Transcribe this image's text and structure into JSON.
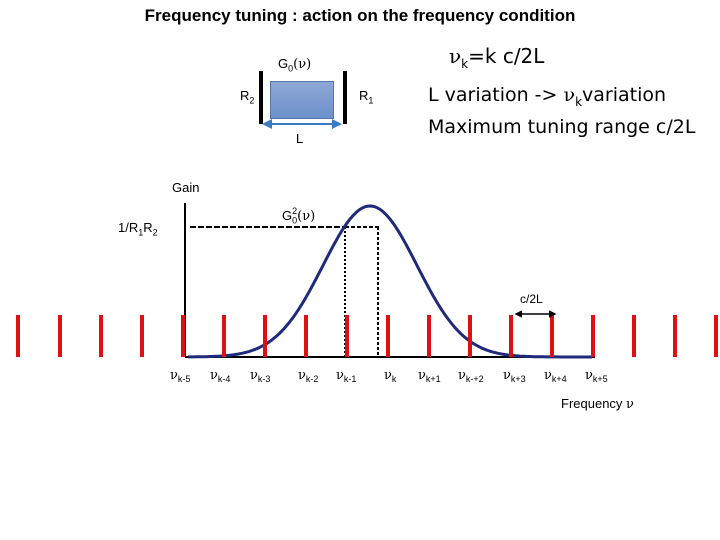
{
  "title": "Frequency tuning : action on the frequency condition",
  "cavity": {
    "gain_symbol": "G",
    "gain_sub": "0",
    "gain_arg": "(ν)",
    "mirror_left": "R",
    "mirror_left_sub": "2",
    "mirror_right": "R",
    "mirror_right_sub": "1",
    "length": "L"
  },
  "condition": {
    "nu": "ν",
    "sub": "k",
    "eq": "=k c/2L"
  },
  "text": {
    "line1_a": "L variation -> ",
    "line1_nu": "ν",
    "line1_sub": "k",
    "line1_b": "variation",
    "line2": "Maximum tuning range c/2L"
  },
  "plot": {
    "y_axis_label": "Gain",
    "threshold_label_a": "1/R",
    "threshold_sub1": "1",
    "threshold_label_b": "R",
    "threshold_sub2": "2",
    "curve_label_a": "G",
    "curve_sup": "2",
    "curve_sub": "0",
    "curve_arg": "(ν)",
    "spacing_label": "c/2L",
    "x_axis_label": "Frequency ",
    "x_axis_nu": "ν",
    "mode_labels": [
      {
        "nu": "ν",
        "sub": "k-5"
      },
      {
        "nu": "ν",
        "sub": "k-4"
      },
      {
        "nu": "ν",
        "sub": "k-3"
      },
      {
        "nu": "ν",
        "sub": "k-2"
      },
      {
        "nu": "ν",
        "sub": "k-1"
      },
      {
        "nu": "ν",
        "sub": "k"
      },
      {
        "nu": "ν",
        "sub": "k+1"
      },
      {
        "nu": "ν",
        "sub": "k-+2"
      },
      {
        "nu": "ν",
        "sub": "k+3"
      },
      {
        "nu": "ν",
        "sub": "k+4"
      },
      {
        "nu": "ν",
        "sub": "k+5"
      }
    ]
  },
  "colors": {
    "curve": "#1f2a7a",
    "modes": "#dd1111",
    "arrow": "#3b7bc0",
    "gain_medium": "#7b97cf"
  }
}
